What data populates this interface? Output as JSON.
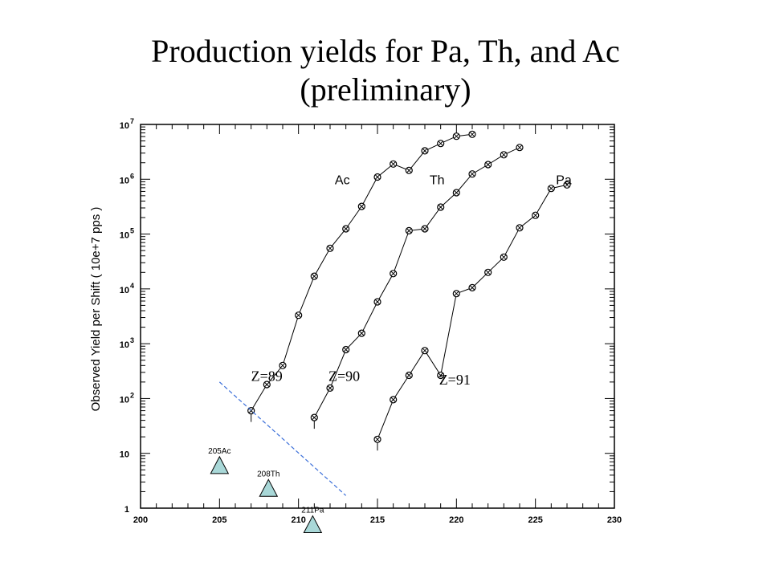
{
  "title": {
    "line1": "Production  yields for Pa, Th, and Ac",
    "line2": "(preliminary)"
  },
  "chart_data": {
    "type": "scatter",
    "xlim": [
      200,
      230
    ],
    "ylim": [
      1,
      10000000
    ],
    "yscale": "log",
    "ylabel": "Observed Yield per Shift ( 10e+7 pps )",
    "xticks": [
      {
        "value": 200,
        "label": "200"
      },
      {
        "value": 205,
        "label": "205"
      },
      {
        "value": 210,
        "label": "210"
      },
      {
        "value": 215,
        "label": "215"
      },
      {
        "value": 220,
        "label": "220"
      },
      {
        "value": 225,
        "label": "225"
      },
      {
        "value": 230,
        "label": "230"
      }
    ],
    "yticks": [
      {
        "value": 1,
        "base": "1",
        "exp": ""
      },
      {
        "value": 10,
        "base": "10",
        "exp": ""
      },
      {
        "value": 100,
        "base": "10",
        "exp": "2"
      },
      {
        "value": 1000,
        "base": "10",
        "exp": "3"
      },
      {
        "value": 10000,
        "base": "10",
        "exp": "4"
      },
      {
        "value": 100000,
        "base": "10",
        "exp": "5"
      },
      {
        "value": 1000000,
        "base": "10",
        "exp": "6"
      },
      {
        "value": 10000000,
        "base": "10",
        "exp": "7"
      }
    ],
    "series": [
      {
        "name": "Ac",
        "x": [
          207,
          208,
          209,
          210,
          211,
          212,
          213,
          214,
          215,
          216,
          217,
          218,
          219,
          220,
          221
        ],
        "y": [
          60,
          180,
          400,
          3300,
          17000,
          55000,
          125000,
          320000,
          1100000,
          1900000,
          1450000,
          3300000,
          4500000,
          6100000,
          6600000
        ]
      },
      {
        "name": "Th",
        "x": [
          211,
          212,
          213,
          214,
          215,
          216,
          217,
          218,
          219,
          220,
          221,
          222,
          223,
          224
        ],
        "y": [
          45,
          155,
          780,
          1550,
          5800,
          19000,
          115000,
          125000,
          310000,
          570000,
          1250000,
          1850000,
          2800000,
          3800000
        ]
      },
      {
        "name": "Pa",
        "x": [
          215,
          216,
          217,
          218,
          219,
          220,
          221,
          222,
          223,
          224,
          225,
          226,
          227
        ],
        "y": [
          18,
          95,
          265,
          750,
          265,
          8200,
          10500,
          20000,
          38000,
          130000,
          220000,
          680000,
          790000
        ]
      }
    ],
    "series_labels": [
      {
        "text": "Ac",
        "x": 212.3,
        "y": 1000000
      },
      {
        "text": "Th",
        "x": 218.3,
        "y": 1000000
      },
      {
        "text": "Pa",
        "x": 226.3,
        "y": 1000000
      }
    ],
    "z_labels": [
      {
        "text": "Z=89",
        "x": 207.0,
        "y": 210
      },
      {
        "text": "Z=90",
        "x": 211.9,
        "y": 210
      },
      {
        "text": "Z=91",
        "x": 218.9,
        "y": 180
      }
    ],
    "limit_line": {
      "x": [
        205,
        213
      ],
      "y": [
        200,
        1.7
      ]
    },
    "markers": [
      {
        "label": "205Ac",
        "x": 205,
        "y": 6
      },
      {
        "label": "208Th",
        "x": 208.1,
        "y": 2.3
      },
      {
        "label": "211Pa",
        "x": 210.9,
        "y": 0.5
      }
    ]
  }
}
